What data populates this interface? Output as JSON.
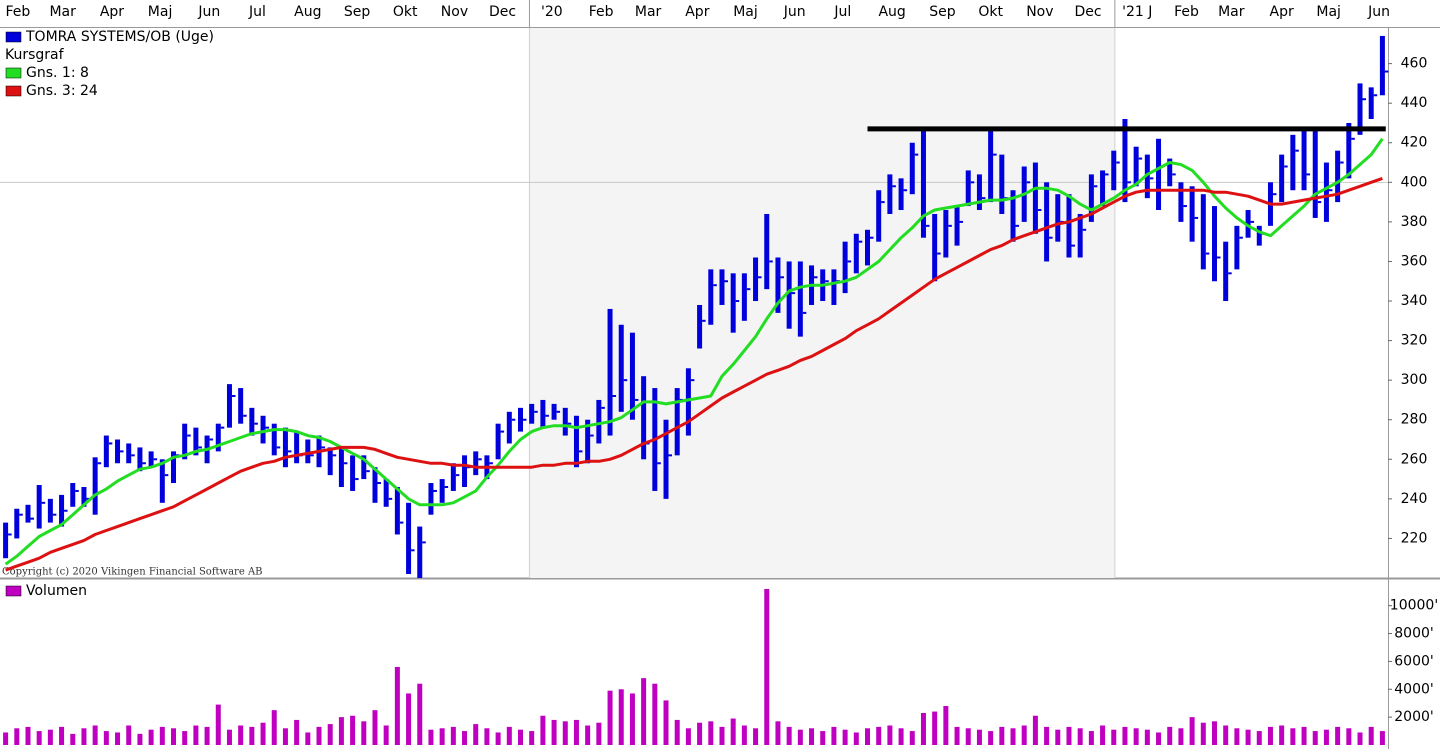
{
  "chart_data": [
    {
      "type": "hlc",
      "title": "TOMRA SYSTEMS/OB (Uge)",
      "subtitle": "Kursgraf",
      "copyright": "Copyright (c) 2020 Vikingen Financial Software AB",
      "color": "#0000dd",
      "xlim": [
        -0.5,
        123.5
      ],
      "xticks": [
        {
          "value": -0.9,
          "label": "Feb"
        },
        {
          "value": 3.1,
          "label": "Mar"
        },
        {
          "value": 7.5,
          "label": "Apr"
        },
        {
          "value": 11.8,
          "label": "Maj"
        },
        {
          "value": 16.2,
          "label": "Jun"
        },
        {
          "value": 20.5,
          "label": "Jul"
        },
        {
          "value": 25.0,
          "label": "Aug"
        },
        {
          "value": 29.4,
          "label": "Sep"
        },
        {
          "value": 33.7,
          "label": "Okt"
        },
        {
          "value": 38.1,
          "label": "Nov"
        },
        {
          "value": 42.4,
          "label": "Dec"
        },
        {
          "value": 46.8,
          "label": "'20"
        },
        {
          "value": 51.2,
          "label": "Feb"
        },
        {
          "value": 55.4,
          "label": "Mar"
        },
        {
          "value": 59.8,
          "label": "Apr"
        },
        {
          "value": 64.1,
          "label": "Maj"
        },
        {
          "value": 68.5,
          "label": "Jun"
        },
        {
          "value": 72.8,
          "label": "Jul"
        },
        {
          "value": 77.2,
          "label": "Aug"
        },
        {
          "value": 81.7,
          "label": "Sep"
        },
        {
          "value": 86.0,
          "label": "Okt"
        },
        {
          "value": 90.4,
          "label": "Nov"
        },
        {
          "value": 94.7,
          "label": "Dec"
        },
        {
          "value": 99.1,
          "label": "'21 J"
        },
        {
          "value": 103.5,
          "label": "Feb"
        },
        {
          "value": 107.5,
          "label": "Mar"
        },
        {
          "value": 112.0,
          "label": "Apr"
        },
        {
          "value": 116.2,
          "label": "Maj"
        },
        {
          "value": 120.7,
          "label": "Jun"
        }
      ],
      "ylim": [
        200,
        478
      ],
      "yticks": [
        220,
        240,
        260,
        280,
        300,
        320,
        340,
        360,
        380,
        400,
        420,
        440,
        460
      ],
      "reference_line": 400,
      "resistance": {
        "value": 427,
        "x": [
          77,
          123.3
        ]
      },
      "high": [
        228,
        235,
        237,
        247,
        240,
        242,
        248,
        246,
        261,
        272,
        270,
        268,
        266,
        264,
        260,
        264,
        278,
        276,
        272,
        278,
        298,
        296,
        286,
        282,
        278,
        276,
        274,
        270,
        272,
        266,
        266,
        262,
        262,
        256,
        250,
        246,
        238,
        226,
        248,
        250,
        258,
        262,
        264,
        262,
        278,
        284,
        286,
        288,
        290,
        288,
        286,
        282,
        280,
        290,
        336,
        328,
        324,
        302,
        296,
        280,
        296,
        306,
        338,
        356,
        356,
        354,
        354,
        362,
        384,
        362,
        360,
        360,
        358,
        356,
        356,
        370,
        374,
        376,
        396,
        404,
        402,
        420,
        426,
        384,
        386,
        388,
        406,
        404,
        428,
        414,
        396,
        408,
        410,
        400,
        394,
        394,
        384,
        404,
        406,
        416,
        432,
        418,
        414,
        422,
        412,
        400,
        398,
        394,
        388,
        370,
        378,
        386,
        378,
        400,
        414,
        424,
        426,
        426,
        410,
        416,
        430,
        450,
        448,
        474
      ],
      "low": [
        210,
        220,
        228,
        225,
        228,
        226,
        236,
        236,
        232,
        256,
        258,
        258,
        254,
        256,
        238,
        248,
        260,
        262,
        258,
        264,
        276,
        278,
        272,
        268,
        262,
        256,
        258,
        258,
        256,
        252,
        246,
        244,
        250,
        238,
        236,
        222,
        202,
        200,
        232,
        238,
        244,
        246,
        252,
        250,
        260,
        268,
        274,
        278,
        276,
        280,
        272,
        256,
        258,
        268,
        272,
        284,
        280,
        260,
        244,
        240,
        262,
        272,
        316,
        328,
        338,
        324,
        330,
        340,
        346,
        334,
        326,
        322,
        338,
        340,
        338,
        344,
        354,
        358,
        370,
        384,
        386,
        394,
        372,
        350,
        362,
        368,
        388,
        386,
        390,
        384,
        370,
        380,
        374,
        360,
        370,
        362,
        362,
        380,
        388,
        396,
        390,
        398,
        392,
        386,
        398,
        380,
        370,
        356,
        350,
        340,
        356,
        372,
        368,
        378,
        390,
        396,
        396,
        382,
        380,
        390,
        402,
        424,
        432,
        444
      ],
      "close": [
        222,
        232,
        230,
        238,
        232,
        234,
        244,
        240,
        258,
        268,
        264,
        262,
        258,
        260,
        252,
        262,
        272,
        266,
        270,
        276,
        292,
        282,
        278,
        276,
        266,
        264,
        262,
        262,
        266,
        262,
        258,
        250,
        254,
        248,
        240,
        228,
        214,
        218,
        244,
        246,
        252,
        256,
        260,
        258,
        274,
        280,
        280,
        284,
        282,
        284,
        278,
        264,
        272,
        286,
        292,
        300,
        290,
        268,
        258,
        262,
        290,
        300,
        330,
        348,
        350,
        340,
        346,
        352,
        360,
        352,
        344,
        334,
        352,
        350,
        350,
        360,
        370,
        372,
        390,
        398,
        396,
        414,
        378,
        364,
        378,
        380,
        400,
        392,
        414,
        392,
        378,
        400,
        386,
        372,
        380,
        368,
        376,
        398,
        404,
        410,
        400,
        412,
        402,
        396,
        404,
        388,
        382,
        364,
        362,
        354,
        372,
        380,
        374,
        394,
        408,
        416,
        404,
        390,
        396,
        410,
        422,
        442,
        444,
        456
      ],
      "series": [
        {
          "name": "Gns. 1: 8",
          "color": "#22dd22",
          "values": [
            207,
            211,
            216,
            221,
            224,
            227,
            232,
            237,
            242,
            245,
            249,
            252,
            255,
            256,
            258,
            261,
            262,
            264,
            265,
            267,
            269,
            271,
            273,
            274,
            275,
            275,
            274,
            272,
            271,
            269,
            266,
            263,
            260,
            255,
            250,
            245,
            240,
            237,
            237,
            237,
            238,
            241,
            244,
            251,
            257,
            264,
            270,
            274,
            276,
            277,
            277,
            276,
            277,
            278,
            279,
            281,
            285,
            289,
            289,
            288,
            289,
            290,
            291,
            292,
            302,
            308,
            315,
            322,
            331,
            339,
            345,
            347,
            348,
            348,
            349,
            350,
            352,
            356,
            360,
            366,
            372,
            377,
            383,
            386,
            387,
            388,
            389,
            390,
            391,
            391,
            392,
            394,
            397,
            397,
            396,
            393,
            389,
            386,
            389,
            392,
            396,
            399,
            404,
            407,
            410,
            409,
            406,
            400,
            393,
            387,
            382,
            378,
            375,
            373,
            378,
            383,
            388,
            394,
            397,
            400,
            404,
            409,
            414,
            422
          ]
        },
        {
          "name": "Gns. 3: 24",
          "color": "#dd1111",
          "values": [
            204,
            206,
            208,
            210,
            213,
            215,
            217,
            219,
            222,
            224,
            226,
            228,
            230,
            232,
            234,
            236,
            239,
            242,
            245,
            248,
            251,
            254,
            256,
            258,
            259,
            261,
            262,
            263,
            264,
            265,
            266,
            266,
            266,
            265,
            263,
            261,
            260,
            259,
            258,
            258,
            257,
            257,
            256,
            256,
            256,
            256,
            256,
            256,
            257,
            257,
            258,
            258,
            259,
            259,
            260,
            262,
            265,
            268,
            270,
            273,
            276,
            279,
            283,
            287,
            291,
            294,
            297,
            300,
            303,
            305,
            307,
            310,
            312,
            315,
            318,
            321,
            325,
            328,
            331,
            335,
            339,
            343,
            347,
            351,
            354,
            357,
            360,
            363,
            366,
            368,
            371,
            373,
            375,
            377,
            379,
            380,
            382,
            384,
            387,
            390,
            393,
            395,
            396,
            396,
            396,
            396,
            396,
            396,
            395,
            395,
            394,
            393,
            391,
            389,
            389,
            390,
            391,
            392,
            393,
            394,
            396,
            398,
            400,
            402
          ]
        }
      ]
    },
    {
      "type": "bar",
      "title": "Volumen",
      "color": "#c000c0",
      "ylim": [
        0,
        11700
      ],
      "yticks": [
        {
          "value": 2000,
          "label": "2000'"
        },
        {
          "value": 4000,
          "label": "4000'"
        },
        {
          "value": 6000,
          "label": "6000'"
        },
        {
          "value": 8000,
          "label": "8000'"
        },
        {
          "value": 10000,
          "label": "10000'"
        }
      ],
      "values": [
        900,
        1200,
        1300,
        1000,
        1100,
        1300,
        800,
        1200,
        1400,
        1000,
        900,
        1400,
        800,
        1100,
        1300,
        1200,
        1000,
        1400,
        1300,
        2900,
        1100,
        1400,
        1300,
        1600,
        2500,
        1200,
        1800,
        900,
        1300,
        1500,
        2000,
        2100,
        1700,
        2500,
        1400,
        5600,
        3700,
        4400,
        1100,
        1200,
        1300,
        1000,
        1500,
        1200,
        900,
        1300,
        1100,
        1000,
        2100,
        1800,
        1700,
        1800,
        1400,
        1600,
        3900,
        4000,
        3700,
        4800,
        4400,
        3200,
        1800,
        1200,
        1600,
        1700,
        1300,
        1900,
        1400,
        1200,
        11200,
        1700,
        1300,
        1100,
        1200,
        1000,
        1300,
        1100,
        900,
        1200,
        1300,
        1400,
        1200,
        1000,
        2300,
        2400,
        2800,
        1300,
        1200,
        1100,
        1000,
        1300,
        1200,
        1400,
        2100,
        1300,
        1100,
        1300,
        1200,
        1000,
        1400,
        1100,
        1300,
        1200,
        1100,
        900,
        1300,
        1200,
        2000,
        1600,
        1700,
        1400,
        1200,
        1100,
        1000,
        1300,
        1400,
        1200,
        1300,
        1000,
        1100,
        1300,
        1200,
        900,
        1300,
        1000
      ]
    }
  ]
}
